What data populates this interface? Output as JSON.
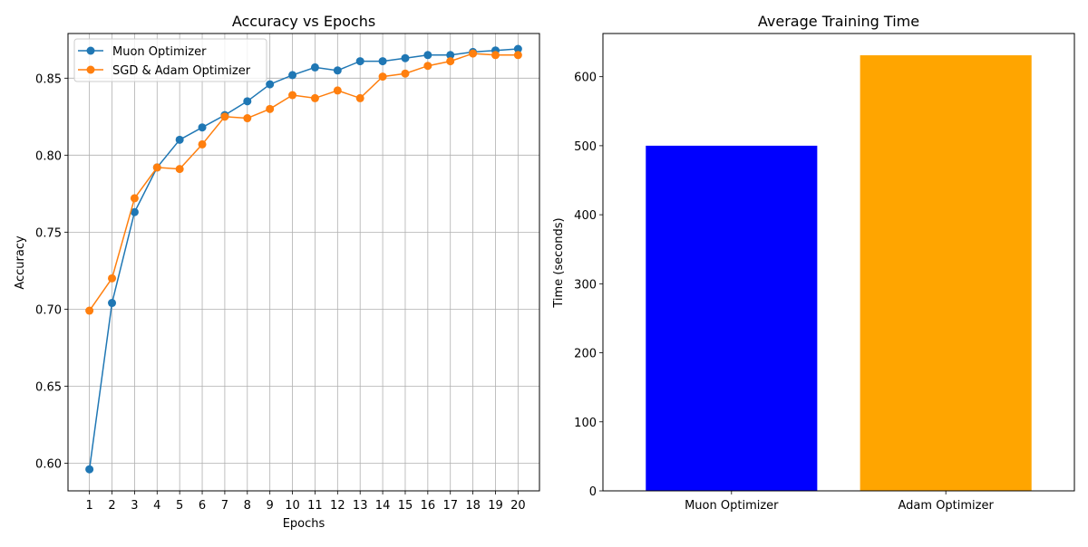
{
  "chart_data": [
    {
      "type": "line",
      "title": "Accuracy vs Epochs",
      "xlabel": "Epochs",
      "ylabel": "Accuracy",
      "x": [
        1,
        2,
        3,
        4,
        5,
        6,
        7,
        8,
        9,
        10,
        11,
        12,
        13,
        14,
        15,
        16,
        17,
        18,
        19,
        20
      ],
      "xlim": [
        0.05,
        20.95
      ],
      "ylim": [
        0.582,
        0.879
      ],
      "yticks": [
        0.6,
        0.65,
        0.7,
        0.75,
        0.8,
        0.85
      ],
      "ytick_labels": [
        "0.60",
        "0.65",
        "0.70",
        "0.75",
        "0.80",
        "0.85"
      ],
      "grid": true,
      "legend_position": "top-left",
      "series": [
        {
          "name": "Muon Optimizer",
          "color": "#1f77b4",
          "marker": "circle",
          "values": [
            0.596,
            0.704,
            0.763,
            0.792,
            0.81,
            0.818,
            0.826,
            0.835,
            0.846,
            0.852,
            0.857,
            0.855,
            0.861,
            0.861,
            0.863,
            0.865,
            0.865,
            0.867,
            0.868,
            0.869
          ]
        },
        {
          "name": "SGD & Adam Optimizer",
          "color": "#ff7f0e",
          "marker": "circle",
          "values": [
            0.699,
            0.72,
            0.772,
            0.792,
            0.791,
            0.807,
            0.825,
            0.824,
            0.83,
            0.839,
            0.837,
            0.842,
            0.837,
            0.851,
            0.853,
            0.858,
            0.861,
            0.866,
            0.865,
            0.865
          ]
        }
      ]
    },
    {
      "type": "bar",
      "title": "Average Training Time",
      "xlabel": "",
      "ylabel": "Time (seconds)",
      "categories": [
        "Muon Optimizer",
        "Adam Optimizer"
      ],
      "values": [
        500,
        631
      ],
      "colors": [
        "#0000ff",
        "#ffa500"
      ],
      "ylim": [
        0,
        662.55
      ],
      "yticks": [
        0,
        100,
        200,
        300,
        400,
        500,
        600
      ],
      "ytick_labels": [
        "0",
        "100",
        "200",
        "300",
        "400",
        "500",
        "600"
      ],
      "grid": false
    }
  ]
}
